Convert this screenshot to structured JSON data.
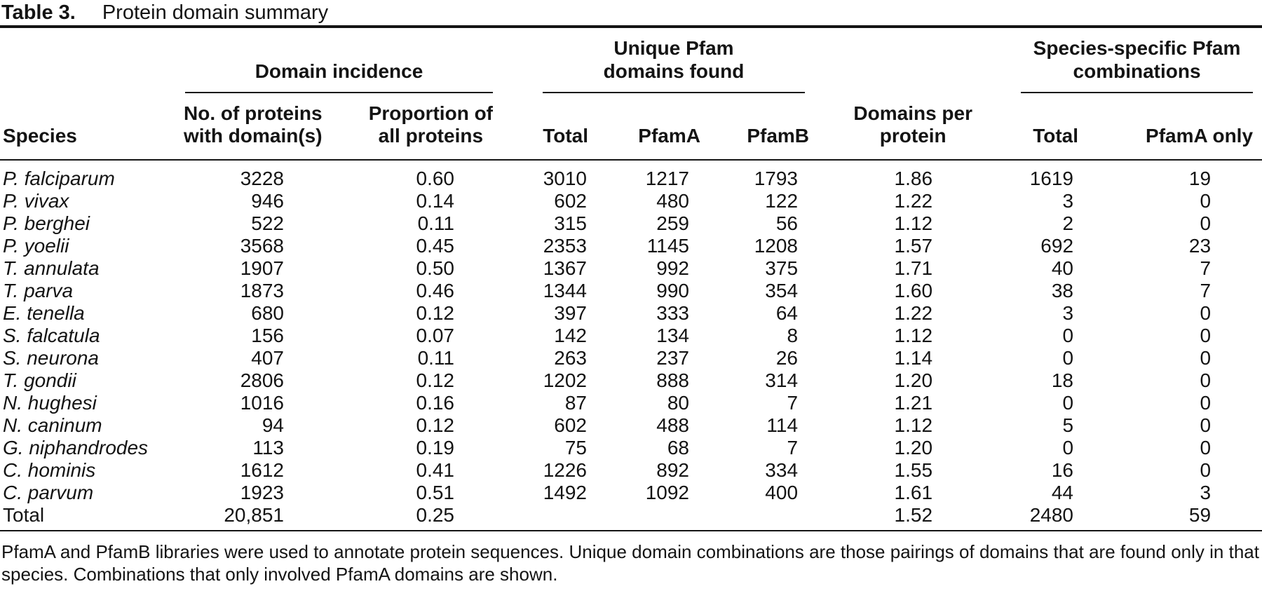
{
  "page": {
    "background": "#ffffff",
    "text_color": "#141414"
  },
  "table": {
    "label": "Table 3.",
    "title": "Protein domain summary",
    "spanners": {
      "domain_incidence": "Domain incidence",
      "unique_pfam": "Unique Pfam\ndomains found",
      "species_specific": "Species-specific Pfam\ncombinations"
    },
    "columns": {
      "species": "Species",
      "proteins_with_domains": "No. of proteins\nwith domain(s)",
      "proportion_all_proteins": "Proportion of\nall proteins",
      "unique_total": "Total",
      "pfama": "PfamA",
      "pfamb": "PfamB",
      "domains_per_protein": "Domains per\nprotein",
      "combinations_total": "Total",
      "pfama_only": "PfamA only"
    },
    "rows": [
      {
        "species": "P. falciparum",
        "italic": true,
        "values": [
          "3228",
          "0.60",
          "3010",
          "1217",
          "1793",
          "1.86",
          "1619",
          "19"
        ]
      },
      {
        "species": "P. vivax",
        "italic": true,
        "values": [
          "946",
          "0.14",
          "602",
          "480",
          "122",
          "1.22",
          "3",
          "0"
        ]
      },
      {
        "species": "P. berghei",
        "italic": true,
        "values": [
          "522",
          "0.11",
          "315",
          "259",
          "56",
          "1.12",
          "2",
          "0"
        ]
      },
      {
        "species": "P. yoelii",
        "italic": true,
        "values": [
          "3568",
          "0.45",
          "2353",
          "1145",
          "1208",
          "1.57",
          "692",
          "23"
        ]
      },
      {
        "species": "T. annulata",
        "italic": true,
        "values": [
          "1907",
          "0.50",
          "1367",
          "992",
          "375",
          "1.71",
          "40",
          "7"
        ]
      },
      {
        "species": "T. parva",
        "italic": true,
        "values": [
          "1873",
          "0.46",
          "1344",
          "990",
          "354",
          "1.60",
          "38",
          "7"
        ]
      },
      {
        "species": "E. tenella",
        "italic": true,
        "values": [
          "680",
          "0.12",
          "397",
          "333",
          "64",
          "1.22",
          "3",
          "0"
        ]
      },
      {
        "species": "S. falcatula",
        "italic": true,
        "values": [
          "156",
          "0.07",
          "142",
          "134",
          "8",
          "1.12",
          "0",
          "0"
        ]
      },
      {
        "species": "S. neurona",
        "italic": true,
        "values": [
          "407",
          "0.11",
          "263",
          "237",
          "26",
          "1.14",
          "0",
          "0"
        ]
      },
      {
        "species": "T. gondii",
        "italic": true,
        "values": [
          "2806",
          "0.12",
          "1202",
          "888",
          "314",
          "1.20",
          "18",
          "0"
        ]
      },
      {
        "species": "N. hughesi",
        "italic": true,
        "values": [
          "1016",
          "0.16",
          "87",
          "80",
          "7",
          "1.21",
          "0",
          "0"
        ]
      },
      {
        "species": "N. caninum",
        "italic": true,
        "values": [
          "94",
          "0.12",
          "602",
          "488",
          "114",
          "1.12",
          "5",
          "0"
        ]
      },
      {
        "species": "G. niphandrodes",
        "italic": true,
        "values": [
          "113",
          "0.19",
          "75",
          "68",
          "7",
          "1.20",
          "0",
          "0"
        ]
      },
      {
        "species": "C. hominis",
        "italic": true,
        "values": [
          "1612",
          "0.41",
          "1226",
          "892",
          "334",
          "1.55",
          "16",
          "0"
        ]
      },
      {
        "species": "C. parvum",
        "italic": true,
        "values": [
          "1923",
          "0.51",
          "1492",
          "1092",
          "400",
          "1.61",
          "44",
          "3"
        ]
      },
      {
        "species": "Total",
        "italic": false,
        "values": [
          "20,851",
          "0.25",
          "",
          "",
          "",
          "1.52",
          "2480",
          "59"
        ]
      }
    ],
    "footnote": "PfamA and PfamB libraries were used to annotate protein sequences. Unique domain combinations are those pairings of domains that are found only in that species. Combinations that only involved PfamA domains are shown."
  }
}
